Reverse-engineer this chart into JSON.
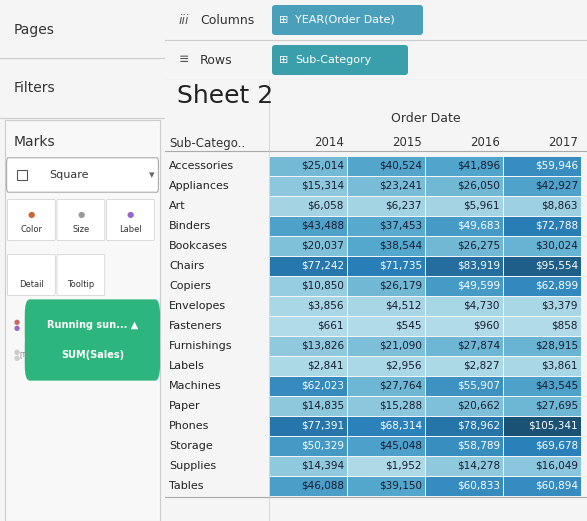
{
  "title": "Sheet 2",
  "col_header": "Order Date",
  "columns": [
    "Sub-Catego..",
    "2014",
    "2015",
    "2016",
    "2017"
  ],
  "rows": [
    [
      "Accessories",
      25014,
      40524,
      41896,
      59946
    ],
    [
      "Appliances",
      15314,
      23241,
      26050,
      42927
    ],
    [
      "Art",
      6058,
      6237,
      5961,
      8863
    ],
    [
      "Binders",
      43488,
      37453,
      49683,
      72788
    ],
    [
      "Bookcases",
      20037,
      38544,
      26275,
      30024
    ],
    [
      "Chairs",
      77242,
      71735,
      83919,
      95554
    ],
    [
      "Copiers",
      10850,
      26179,
      49599,
      62899
    ],
    [
      "Envelopes",
      3856,
      4512,
      4730,
      3379
    ],
    [
      "Fasteners",
      661,
      545,
      960,
      858
    ],
    [
      "Furnishings",
      13826,
      21090,
      27874,
      28915
    ],
    [
      "Labels",
      2841,
      2956,
      2827,
      3861
    ],
    [
      "Machines",
      62023,
      27764,
      55907,
      43545
    ],
    [
      "Paper",
      14835,
      15288,
      20662,
      27695
    ],
    [
      "Phones",
      77391,
      68314,
      78962,
      105341
    ],
    [
      "Storage",
      50329,
      45048,
      58789,
      69678
    ],
    [
      "Supplies",
      14394,
      1952,
      14278,
      16049
    ],
    [
      "Tables",
      46088,
      39150,
      60833,
      60894
    ]
  ],
  "max_value": 105341,
  "left_panel_bg": "#f0f0f0",
  "header_bg": "#e8e8e8",
  "table_bg": "#ffffff",
  "pill_color_blue": "#4a9fbb",
  "pill_color_teal": "#3a9faa",
  "green_pill": "#2db57e",
  "pages_label": "Pages",
  "filters_label": "Filters",
  "marks_label": "Marks",
  "columns_label": "Columns",
  "rows_label": "Rows",
  "pill_year": "YEAR(Order Date)",
  "pill_subcat": "Sub-Category",
  "mark_type": "Square",
  "mark_color_label": "Color",
  "mark_size_label": "Size",
  "mark_label_label": "Label",
  "mark_detail_label": "Detail",
  "mark_tooltip_label": "Tooltip",
  "running_sum_label": "Running sun...",
  "sum_sales_label": "SUM(Sales)",
  "col_color_min": "#b2dce8",
  "col_color_max": "#1a5276",
  "font_family": "DejaVu Sans"
}
